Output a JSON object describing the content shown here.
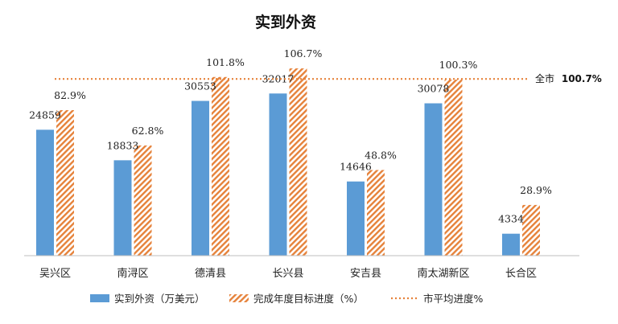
{
  "chart_data": {
    "type": "bar",
    "title": "实到外资",
    "categories": [
      "吴兴区",
      "南浔区",
      "德清县",
      "长兴县",
      "安吉县",
      "南太湖新区",
      "长合区"
    ],
    "series": [
      {
        "name": "实到外资（万美元）",
        "values": [
          24859,
          18833,
          30553,
          32017,
          14646,
          30078,
          4334
        ],
        "labels": [
          "24859",
          "18833",
          "30553",
          "32017",
          "14646",
          "30078",
          "4334"
        ],
        "color": "#5b9bd5"
      },
      {
        "name": "完成年度目标进度（%）",
        "values": [
          82.9,
          62.8,
          101.8,
          106.7,
          48.8,
          100.3,
          28.9
        ],
        "labels": [
          "82.9%",
          "62.8%",
          "101.8%",
          "106.7%",
          "48.8%",
          "100.3%",
          "28.9%"
        ],
        "color": "#e6823a",
        "pattern": "diagonal-hatch"
      }
    ],
    "reference_line": {
      "name": "市平均进度%",
      "value": 100.7,
      "label_prefix": "全市",
      "label_value": "100.7%",
      "color": "#e6823a",
      "style": "dotted"
    },
    "legend": {
      "placement": "bottom"
    },
    "grid": false,
    "ylim_amount": [
      0,
      40000
    ],
    "ylim_percent": [
      0,
      130
    ]
  }
}
